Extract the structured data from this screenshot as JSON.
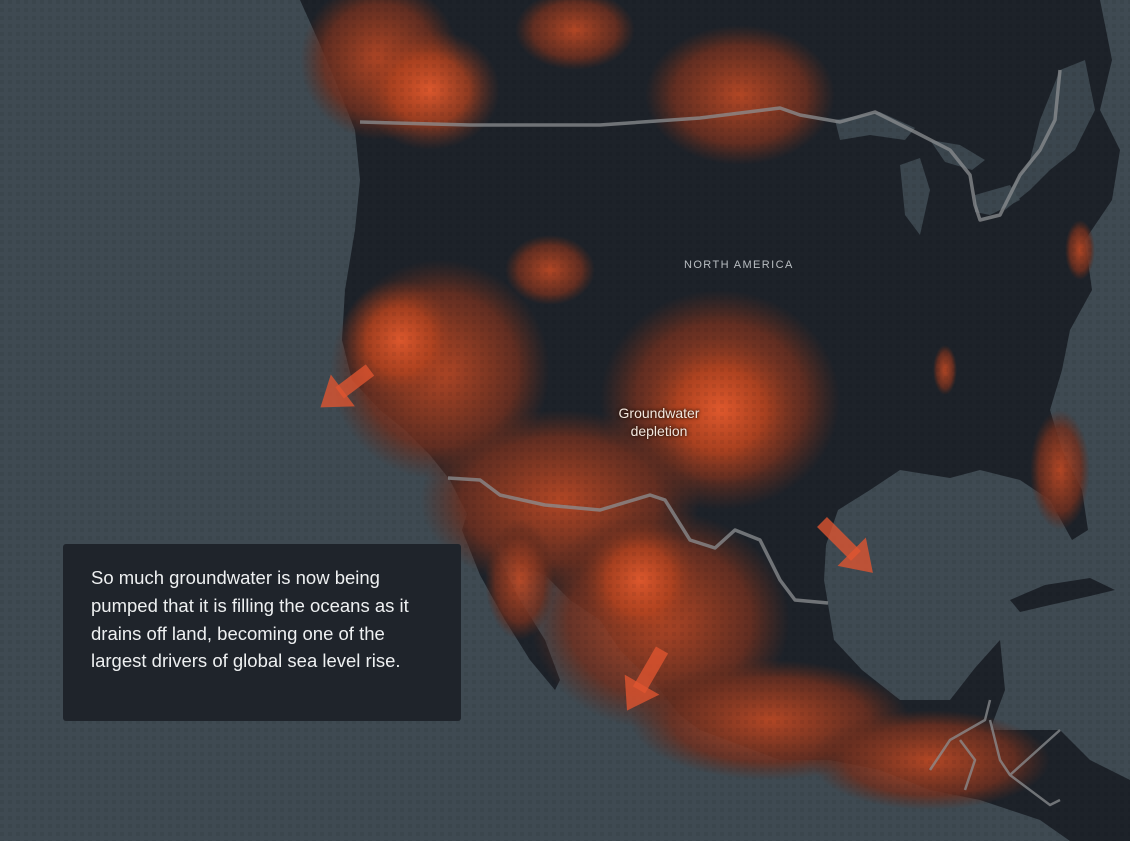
{
  "map": {
    "region_label": "NORTH AMERICA",
    "feature_label": {
      "line1": "Groundwater",
      "line2": "depletion"
    },
    "callout_text": "So much groundwater is now being pumped that it is filling the oceans as it drains off land, becoming one of the largest drivers of global sea level rise.",
    "colors": {
      "ocean": "#3f4a52",
      "land": "#1d2229",
      "depletion_low": "#5a2b1e",
      "depletion_high": "#d9542c",
      "arrow": "#e0552f",
      "border": "#8c8f92",
      "callout_bg": "#1f242b"
    },
    "outflow_arrows": [
      "pacific-coast-arrow",
      "gulf-coast-arrow",
      "pacific-mexico-arrow"
    ]
  }
}
